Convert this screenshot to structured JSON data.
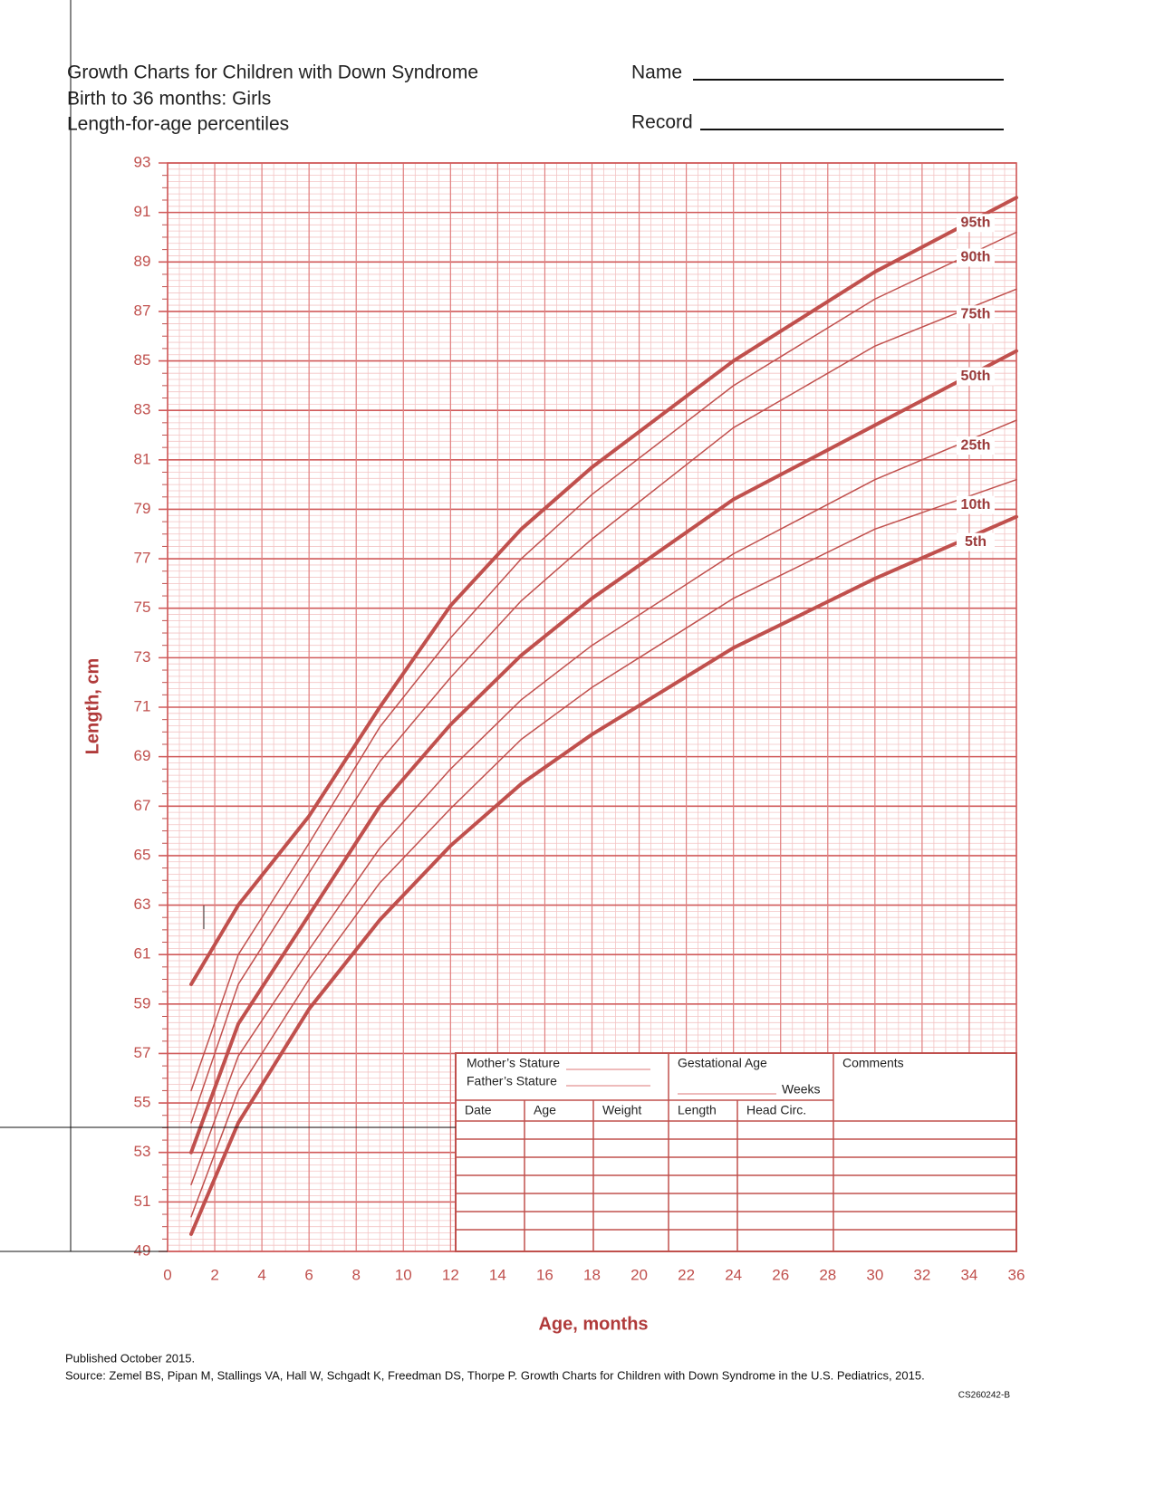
{
  "header": {
    "name_label": "Name",
    "record_label": "Record"
  },
  "chart_data": {
    "type": "line",
    "title": "Growth Charts for Children with Down Syndrome",
    "subtitle": [
      "Birth to 36 months: Girls",
      "Length-for-age percentiles"
    ],
    "x_label": "Age, months",
    "y_label": "Length, cm",
    "x": [
      1,
      3,
      6,
      9,
      12,
      15,
      18,
      24,
      30,
      36
    ],
    "series": [
      {
        "name": "95th",
        "color": "#c0504d",
        "line_width": 4,
        "values": [
          59.8,
          63.0,
          66.6,
          71.0,
          75.1,
          78.2,
          80.7,
          85.0,
          88.6,
          91.6
        ]
      },
      {
        "name": "90th",
        "color": "#c0504d",
        "line_width": 1.5,
        "values": [
          55.5,
          61.0,
          65.5,
          70.2,
          73.8,
          77.0,
          79.6,
          84.0,
          87.5,
          90.2
        ]
      },
      {
        "name": "75th",
        "color": "#c0504d",
        "line_width": 1.5,
        "values": [
          54.2,
          59.8,
          64.3,
          68.8,
          72.2,
          75.3,
          77.8,
          82.3,
          85.6,
          87.9
        ]
      },
      {
        "name": "50th",
        "color": "#c0504d",
        "line_width": 4,
        "values": [
          53.0,
          58.2,
          62.6,
          67.0,
          70.3,
          73.1,
          75.4,
          79.4,
          82.4,
          85.4
        ]
      },
      {
        "name": "25th",
        "color": "#c0504d",
        "line_width": 1.5,
        "values": [
          51.7,
          56.9,
          61.2,
          65.3,
          68.5,
          71.3,
          73.5,
          77.2,
          80.2,
          82.6
        ]
      },
      {
        "name": "10th",
        "color": "#c0504d",
        "line_width": 1.5,
        "values": [
          50.4,
          55.5,
          60.0,
          63.9,
          66.9,
          69.7,
          71.8,
          75.4,
          78.2,
          80.2
        ]
      },
      {
        "name": "5th",
        "color": "#c0504d",
        "line_width": 4,
        "values": [
          49.7,
          54.2,
          58.8,
          62.4,
          65.4,
          67.9,
          69.9,
          73.4,
          76.2,
          78.7
        ]
      }
    ],
    "xlim": [
      0,
      36
    ],
    "xticks": [
      0,
      2,
      4,
      6,
      8,
      10,
      12,
      14,
      16,
      18,
      20,
      22,
      24,
      26,
      28,
      30,
      32,
      34,
      36
    ],
    "ylim": [
      49,
      93
    ],
    "yticks": [
      49,
      51,
      53,
      55,
      57,
      59,
      61,
      63,
      65,
      67,
      69,
      71,
      73,
      75,
      77,
      79,
      81,
      83,
      85,
      87,
      89,
      91,
      93
    ],
    "grid": true
  },
  "record_table": {
    "mother": "Mother’s Stature",
    "father": "Father’s Stature",
    "gestational": "Gestational Age",
    "weeks": "Weeks",
    "comments": "Comments",
    "columns": [
      "Date",
      "Age",
      "Weight",
      "Length",
      "Head Circ."
    ]
  },
  "footer": {
    "published": "Published October 2015.",
    "source": "Source: Zemel BS, Pipan M, Stallings VA, Hall W, Schgadt K, Freedman DS, Thorpe P. Growth Charts for Children with Down Syndrome in the U.S. Pediatrics, 2015.",
    "code": "CS260242-B"
  }
}
